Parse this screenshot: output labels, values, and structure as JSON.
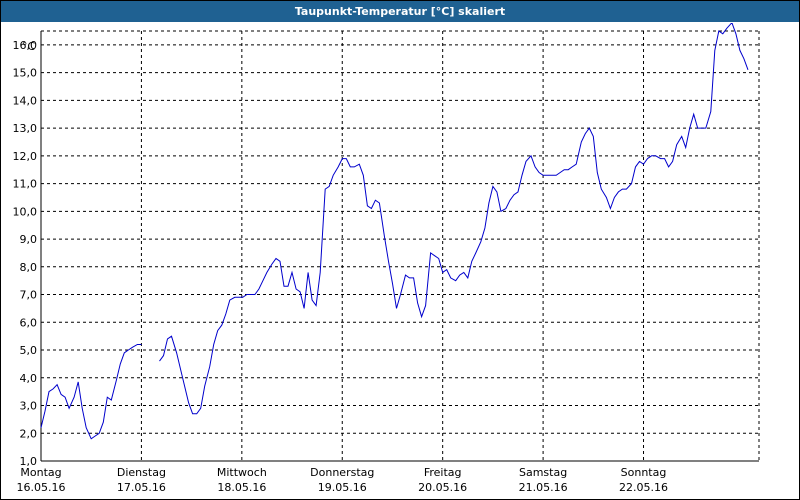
{
  "window": {
    "title": "Taupunkt-Temperatur [°C] skaliert"
  },
  "colors": {
    "title_bar": "#1f6192",
    "line": "#0000cc",
    "grid": "#000000"
  },
  "chart_data": {
    "type": "line",
    "title": "Taupunkt-Temperatur [°C] skaliert",
    "xlabel": "",
    "ylabel": "",
    "y_unit": "°C",
    "ylim": [
      1.0,
      16.5
    ],
    "y_ticks": [
      "1,0",
      "2,0",
      "3,0",
      "4,0",
      "5,0",
      "6,0",
      "7,0",
      "8,0",
      "9,0",
      "10,0",
      "11,0",
      "12,0",
      "13,0",
      "14,0",
      "15,0",
      "16,0"
    ],
    "x_ticks": [
      {
        "day": "Montag",
        "date": "16.05.16"
      },
      {
        "day": "Dienstag",
        "date": "17.05.16"
      },
      {
        "day": "Mittwoch",
        "date": "18.05.16"
      },
      {
        "day": "Donnerstag",
        "date": "19.05.16"
      },
      {
        "day": "Freitag",
        "date": "20.05.16"
      },
      {
        "day": "Samstag",
        "date": "21.05.16"
      },
      {
        "day": "Sonntag",
        "date": "22.05.16"
      }
    ],
    "grid": true,
    "series": [
      {
        "segments": [
          [
            [
              0.0,
              2.2
            ],
            [
              0.04,
              2.8
            ],
            [
              0.08,
              3.5
            ],
            [
              0.12,
              3.6
            ],
            [
              0.16,
              3.75
            ],
            [
              0.2,
              3.4
            ],
            [
              0.24,
              3.3
            ],
            [
              0.28,
              2.9
            ],
            [
              0.33,
              3.3
            ],
            [
              0.37,
              3.85
            ],
            [
              0.41,
              2.9
            ],
            [
              0.45,
              2.2
            ],
            [
              0.5,
              1.8
            ],
            [
              0.54,
              1.9
            ],
            [
              0.58,
              2.0
            ],
            [
              0.62,
              2.4
            ],
            [
              0.66,
              3.3
            ],
            [
              0.7,
              3.2
            ],
            [
              0.75,
              3.9
            ],
            [
              0.79,
              4.5
            ],
            [
              0.83,
              4.9
            ],
            [
              0.87,
              5.0
            ],
            [
              0.91,
              5.1
            ],
            [
              0.96,
              5.2
            ],
            [
              1.0,
              5.2
            ]
          ],
          [
            [
              1.18,
              4.6
            ],
            [
              1.22,
              4.8
            ],
            [
              1.26,
              5.4
            ],
            [
              1.3,
              5.5
            ],
            [
              1.35,
              4.9
            ],
            [
              1.39,
              4.3
            ],
            [
              1.43,
              3.7
            ],
            [
              1.47,
              3.1
            ],
            [
              1.51,
              2.7
            ],
            [
              1.55,
              2.7
            ],
            [
              1.59,
              2.9
            ],
            [
              1.63,
              3.7
            ],
            [
              1.68,
              4.4
            ],
            [
              1.72,
              5.2
            ],
            [
              1.76,
              5.7
            ],
            [
              1.8,
              5.9
            ],
            [
              1.84,
              6.3
            ],
            [
              1.88,
              6.8
            ],
            [
              1.93,
              6.9
            ],
            [
              1.97,
              6.9
            ],
            [
              2.01,
              6.9
            ],
            [
              2.05,
              7.0
            ],
            [
              2.09,
              7.0
            ],
            [
              2.13,
              7.0
            ],
            [
              2.17,
              7.2
            ],
            [
              2.21,
              7.5
            ],
            [
              2.25,
              7.8
            ],
            [
              2.3,
              8.1
            ],
            [
              2.34,
              8.3
            ],
            [
              2.38,
              8.2
            ],
            [
              2.42,
              7.3
            ],
            [
              2.46,
              7.3
            ],
            [
              2.5,
              7.8
            ],
            [
              2.54,
              7.2
            ],
            [
              2.58,
              7.1
            ],
            [
              2.62,
              6.5
            ],
            [
              2.66,
              7.8
            ],
            [
              2.7,
              6.8
            ],
            [
              2.74,
              6.6
            ],
            [
              2.78,
              7.8
            ],
            [
              2.83,
              10.8
            ],
            [
              2.87,
              10.9
            ],
            [
              2.91,
              11.3
            ],
            [
              2.96,
              11.6
            ],
            [
              3.0,
              11.9
            ],
            [
              3.04,
              11.9
            ],
            [
              3.08,
              11.6
            ],
            [
              3.12,
              11.6
            ],
            [
              3.17,
              11.7
            ],
            [
              3.21,
              11.3
            ],
            [
              3.25,
              10.2
            ],
            [
              3.29,
              10.1
            ],
            [
              3.33,
              10.4
            ],
            [
              3.37,
              10.3
            ],
            [
              3.42,
              9.1
            ],
            [
              3.46,
              8.2
            ],
            [
              3.5,
              7.4
            ],
            [
              3.54,
              6.5
            ],
            [
              3.58,
              7.0
            ],
            [
              3.63,
              7.7
            ],
            [
              3.67,
              7.6
            ],
            [
              3.71,
              7.6
            ],
            [
              3.75,
              6.7
            ],
            [
              3.79,
              6.2
            ],
            [
              3.83,
              6.6
            ],
            [
              3.88,
              8.5
            ],
            [
              3.92,
              8.4
            ],
            [
              3.96,
              8.3
            ],
            [
              4.0,
              7.8
            ],
            [
              4.04,
              7.9
            ],
            [
              4.08,
              7.6
            ],
            [
              4.13,
              7.5
            ],
            [
              4.17,
              7.7
            ],
            [
              4.21,
              7.8
            ],
            [
              4.25,
              7.6
            ],
            [
              4.29,
              8.2
            ],
            [
              4.33,
              8.5
            ],
            [
              4.38,
              8.9
            ],
            [
              4.42,
              9.4
            ],
            [
              4.46,
              10.3
            ],
            [
              4.5,
              10.9
            ],
            [
              4.54,
              10.7
            ],
            [
              4.58,
              10.0
            ],
            [
              4.63,
              10.1
            ],
            [
              4.67,
              10.4
            ],
            [
              4.71,
              10.6
            ],
            [
              4.75,
              10.7
            ],
            [
              4.79,
              11.3
            ],
            [
              4.83,
              11.8
            ],
            [
              4.88,
              12.0
            ],
            [
              4.92,
              11.6
            ],
            [
              4.96,
              11.4
            ],
            [
              5.0,
              11.3
            ],
            [
              5.04,
              11.3
            ],
            [
              5.08,
              11.3
            ],
            [
              5.13,
              11.3
            ],
            [
              5.17,
              11.4
            ],
            [
              5.21,
              11.5
            ],
            [
              5.25,
              11.5
            ],
            [
              5.29,
              11.6
            ],
            [
              5.33,
              11.7
            ],
            [
              5.38,
              12.5
            ],
            [
              5.42,
              12.8
            ],
            [
              5.46,
              13.0
            ],
            [
              5.5,
              12.7
            ],
            [
              5.54,
              11.4
            ],
            [
              5.58,
              10.8
            ],
            [
              5.63,
              10.5
            ],
            [
              5.67,
              10.1
            ],
            [
              5.71,
              10.5
            ],
            [
              5.75,
              10.7
            ],
            [
              5.79,
              10.8
            ],
            [
              5.83,
              10.8
            ],
            [
              5.88,
              11.0
            ],
            [
              5.92,
              11.6
            ],
            [
              5.96,
              11.8
            ],
            [
              6.0,
              11.7
            ],
            [
              6.04,
              11.9
            ],
            [
              6.08,
              12.0
            ],
            [
              6.12,
              12.0
            ],
            [
              6.17,
              11.9
            ],
            [
              6.21,
              11.9
            ],
            [
              6.25,
              11.6
            ],
            [
              6.29,
              11.8
            ],
            [
              6.33,
              12.4
            ],
            [
              6.38,
              12.7
            ],
            [
              6.42,
              12.3
            ],
            [
              6.46,
              13.0
            ],
            [
              6.5,
              13.5
            ],
            [
              6.54,
              13.0
            ],
            [
              6.58,
              13.0
            ],
            [
              6.62,
              13.0
            ],
            [
              6.67,
              13.6
            ],
            [
              6.71,
              15.8
            ],
            [
              6.75,
              16.5
            ],
            [
              6.79,
              16.4
            ],
            [
              6.83,
              16.6
            ],
            [
              6.88,
              16.8
            ],
            [
              6.92,
              16.4
            ],
            [
              6.96,
              15.8
            ],
            [
              7.0,
              15.5
            ],
            [
              7.04,
              15.1
            ]
          ]
        ]
      }
    ]
  }
}
